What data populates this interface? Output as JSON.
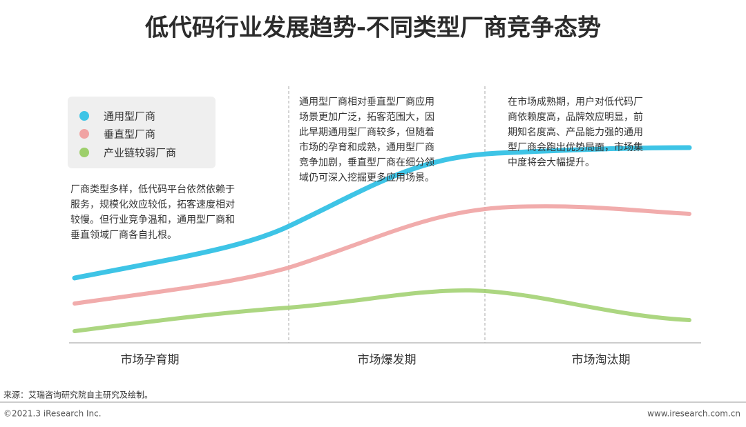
{
  "title": "低代码行业发展趋势-不同类型厂商竞争态势",
  "legend": [
    "通用型厂商",
    "垂直型厂商",
    "产业链较弱厂商"
  ],
  "stages": [
    {
      "label": "市场孕育期",
      "description": [
        "厂商类型多样，低代码平台依然依赖于",
        "服务，规模化效应较低，拓客速度相对",
        "较慢。但行业竞争温和，通用型厂商和",
        "垂直领域厂商各自扎根。"
      ]
    },
    {
      "label": "市场爆发期",
      "description": [
        "通用型厂商相对垂直型厂商应用",
        "场景更加广泛，拓客范围大，因",
        "此早期通用型厂商较多，但随着",
        "市场的孕育和成熟，通用型厂商",
        "竞争加剧，垂直型厂商在细分领",
        "域仍可深入挖掘更多应用场景。"
      ]
    },
    {
      "label": "市场淘汰期",
      "description": [
        "在市场成熟期，用户对低代码厂",
        "商依赖度高，品牌效应明显，前",
        "期知名度高、产品能力强的通用",
        "型厂商会跑出优势局面，市场集",
        "中度将会大幅提升。"
      ]
    }
  ],
  "source": "来源：艾瑞咨询研究院自主研究及绘制。",
  "copyright": "©2021.3 iResearch Inc.",
  "website": "www.iresearch.com.cn"
}
